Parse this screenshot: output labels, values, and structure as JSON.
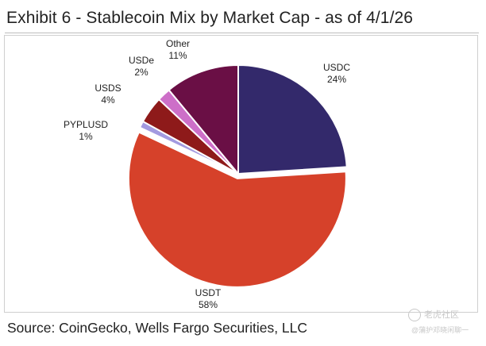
{
  "title": "Exhibit 6 - Stablecoin Mix by Market Cap - as of 4/1/26",
  "source": "Source: CoinGecko, Wells Fargo Securities, LLC",
  "watermark": {
    "line1": "老虎社区",
    "line2": "@蒲护邓晓闲聊一"
  },
  "chart_data": {
    "type": "pie",
    "start_angle_deg": 0,
    "direction": "clockwise",
    "slices": [
      {
        "label": "USDC",
        "value": 24,
        "value_label": "24%",
        "color": "#33296b"
      },
      {
        "label": "USDT",
        "value": 58,
        "value_label": "58%",
        "color": "#d6412a"
      },
      {
        "label": "PYPLUSD",
        "value": 1,
        "value_label": "1%",
        "color": "#a39ae0"
      },
      {
        "label": "USDS",
        "value": 4,
        "value_label": "4%",
        "color": "#8e1a1a"
      },
      {
        "label": "USDe",
        "value": 2,
        "value_label": "2%",
        "color": "#cd6fc8"
      },
      {
        "label": "Other",
        "value": 11,
        "value_label": "11%",
        "color": "#6a0f45"
      }
    ]
  }
}
